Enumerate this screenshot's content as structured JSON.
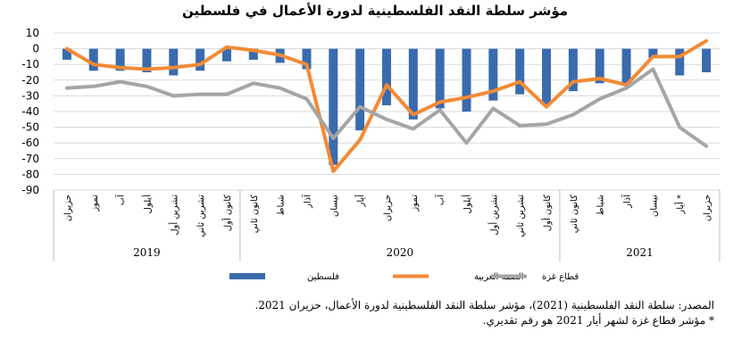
{
  "chart_data": {
    "type": "bar",
    "title": "مؤشر سلطة النقد الفلسطينية لدورة الأعمال في فلسطين",
    "ylim": [
      -90,
      10
    ],
    "yticks": [
      10,
      0,
      -10,
      -20,
      -30,
      -40,
      -50,
      -60,
      -70,
      -80,
      -90
    ],
    "grid": true,
    "legend_position": "bottom",
    "categories": [
      "حزيران",
      "تموز",
      "آب",
      "أيلول",
      "تشرين أول",
      "تشرين ثاني",
      "كانون أول",
      "كانون ثاني",
      "شباط",
      "آذار",
      "نيسان",
      "أيار",
      "حزيران",
      "تموز",
      "آب",
      "أيلول",
      "تشرين أول",
      "تشرين ثاني",
      "كانون أول",
      "كانون ثاني",
      "شباط",
      "آذار",
      "نيسان",
      "أيار *",
      "حزيران"
    ],
    "year_groups": [
      {
        "label": "2019",
        "count": 7
      },
      {
        "label": "2020",
        "count": 12
      },
      {
        "label": "2021",
        "count": 6
      }
    ],
    "series": [
      {
        "name": "فلسطين",
        "type": "bar",
        "color": "#3A6BAD",
        "values": [
          -7,
          -14,
          -14,
          -15,
          -17,
          -14,
          -8,
          -7,
          -9,
          -13,
          -74,
          -52,
          -36,
          -45,
          -38,
          -40,
          -33,
          -29,
          -36,
          -27,
          -22,
          -22,
          -6,
          -17,
          -15
        ]
      },
      {
        "name": "الضفة الغربية",
        "type": "line",
        "color": "#F28A35",
        "values": [
          0,
          -10,
          -12,
          -13,
          -12,
          -10,
          1,
          -1,
          -4,
          -10,
          -78,
          -58,
          -23,
          -42,
          -34,
          -31,
          -27,
          -21,
          -37,
          -21,
          -19,
          -23,
          -5,
          -5,
          5
        ]
      },
      {
        "name": "قطاع غزة",
        "type": "line",
        "color": "#A5A5A5",
        "values": [
          -25,
          -24,
          -21,
          -24,
          -30,
          -29,
          -29,
          -22,
          -25,
          -32,
          -57,
          -37,
          -45,
          -51,
          -39,
          -60,
          -38,
          -49,
          -48,
          -42,
          -32,
          -25,
          -13,
          -50,
          -62
        ]
      }
    ]
  },
  "notes": {
    "source": "المصدر: سلطة النقد الفلسطينية (2021)، مؤشر سلطة النقد الفلسطينية لدورة الأعمال، حزيران 2021.",
    "footnote": "* مؤشر قطاع غزة لشهر أيار 2021 هو رقم تقديري."
  }
}
